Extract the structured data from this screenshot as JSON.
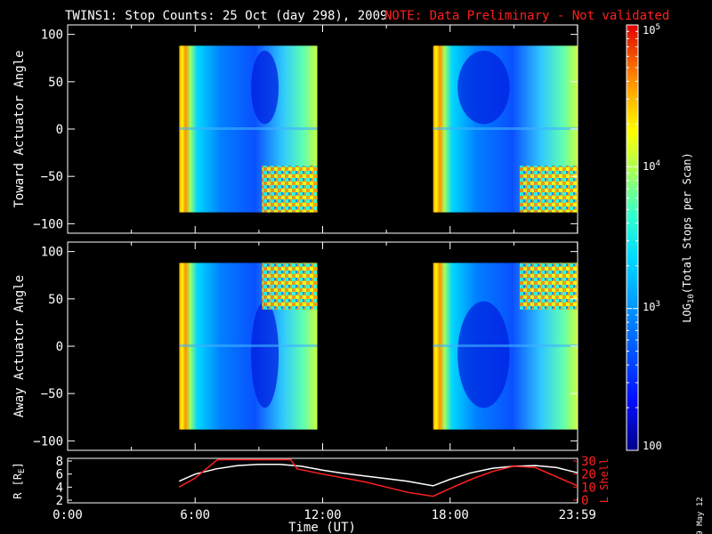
{
  "header": {
    "title": "TWINS1: Stop Counts: 25 Oct (day 298), 2009",
    "note": "NOTE: Data Preliminary - Not validated"
  },
  "date_stamp": "9 May 12",
  "chart_data": [
    {
      "type": "heatmap",
      "title": "",
      "ylabel": "Toward Actuator Angle",
      "xlim": [
        0,
        24
      ],
      "ylim": [
        -110,
        110
      ],
      "yticks": [
        "100",
        "50",
        "0",
        "−50",
        "−100"
      ],
      "data_blocks_time_ranges_hours": [
        [
          5.25,
          11.75
        ],
        [
          17.2,
          23.99
        ]
      ],
      "data_angle_range": [
        -88,
        88
      ]
    },
    {
      "type": "heatmap",
      "title": "",
      "ylabel": "Away Actuator Angle",
      "xlim": [
        0,
        24
      ],
      "ylim": [
        -110,
        110
      ],
      "yticks": [
        "100",
        "50",
        "0",
        "−50",
        "−100"
      ],
      "data_blocks_time_ranges_hours": [
        [
          5.25,
          11.75
        ],
        [
          17.2,
          23.99
        ]
      ],
      "data_angle_range": [
        -88,
        88
      ]
    },
    {
      "type": "line",
      "xlabel": "Time (UT)",
      "xticks": [
        "0:00",
        "6:00",
        "12:00",
        "18:00",
        "23:59"
      ],
      "ylabel_left": "R [R",
      "ylabel_left_sub": "E",
      "ylabel_left_close": "]",
      "yticks_left": [
        "8",
        "6",
        "4",
        "2"
      ],
      "ylim_left": [
        2,
        8
      ],
      "ylabel_right": "L Shell",
      "yticks_right": [
        "30",
        "20",
        "10",
        "0"
      ],
      "ylim_right": [
        0,
        30
      ],
      "series": [
        {
          "color": "#ffffff",
          "axis": "left",
          "x": [
            5.25,
            6,
            7,
            8,
            9,
            10,
            11,
            12,
            13,
            14,
            15,
            16,
            17.2,
            18,
            19,
            20,
            21,
            22,
            23,
            23.99
          ],
          "y": [
            4.9,
            6.0,
            6.8,
            7.3,
            7.5,
            7.5,
            7.2,
            6.6,
            6.1,
            5.7,
            5.3,
            4.9,
            4.2,
            5.2,
            6.2,
            6.9,
            7.2,
            7.3,
            7.0,
            6.2
          ]
        },
        {
          "color": "#ff2020",
          "axis": "right",
          "x": [
            5.25,
            6,
            6.6,
            7.05,
            7.5,
            8,
            9,
            10,
            10.5,
            10.8,
            12,
            13,
            14,
            15,
            16,
            17.2,
            18,
            19,
            20,
            21,
            22,
            23,
            23.99
          ],
          "y": [
            10,
            17,
            25,
            31,
            31,
            31,
            31,
            31,
            31,
            24,
            20,
            17,
            14,
            10,
            6,
            3,
            9,
            16,
            22,
            26,
            25,
            18,
            11
          ]
        }
      ]
    }
  ],
  "colorbar": {
    "label_prefix": "LOG",
    "label_sub": "10",
    "label_suffix": "(Total Stops per Scan)",
    "scale": "log",
    "range": [
      100,
      100000
    ],
    "tick_100": "100",
    "tick_1000_base": "10",
    "tick_1000_exp": "3",
    "tick_10000_base": "10",
    "tick_10000_exp": "4",
    "tick_100000_base": "10",
    "tick_100000_exp": "5"
  }
}
